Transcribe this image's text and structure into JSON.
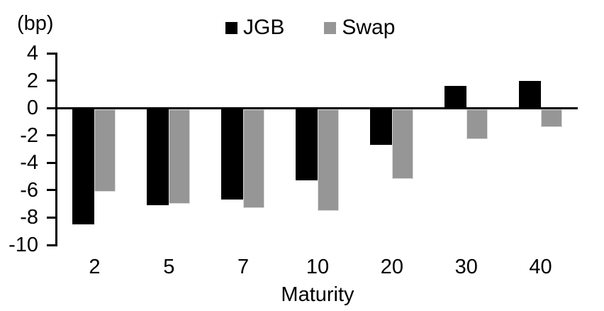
{
  "chart_data": {
    "type": "bar",
    "title": "",
    "unit": "(bp)",
    "categories": [
      "2",
      "5",
      "7",
      "10",
      "20",
      "30",
      "40"
    ],
    "series": [
      {
        "name": "JGB",
        "color": "#000000",
        "values": [
          -8.5,
          -7.1,
          -6.7,
          -5.3,
          -2.7,
          1.6,
          2.0
        ]
      },
      {
        "name": "Swap",
        "color": "#969696",
        "values": [
          -6.1,
          -7.0,
          -7.3,
          -7.5,
          -5.2,
          -2.3,
          -1.4
        ]
      }
    ],
    "xlabel": "Maturity",
    "ylabel": "(bp)",
    "ylim": [
      -10,
      4
    ],
    "yticks": [
      4,
      2,
      0,
      -2,
      -4,
      -6,
      -8,
      -10
    ],
    "grid": false,
    "legend_position": "top-center",
    "axis_color": "#000000"
  }
}
